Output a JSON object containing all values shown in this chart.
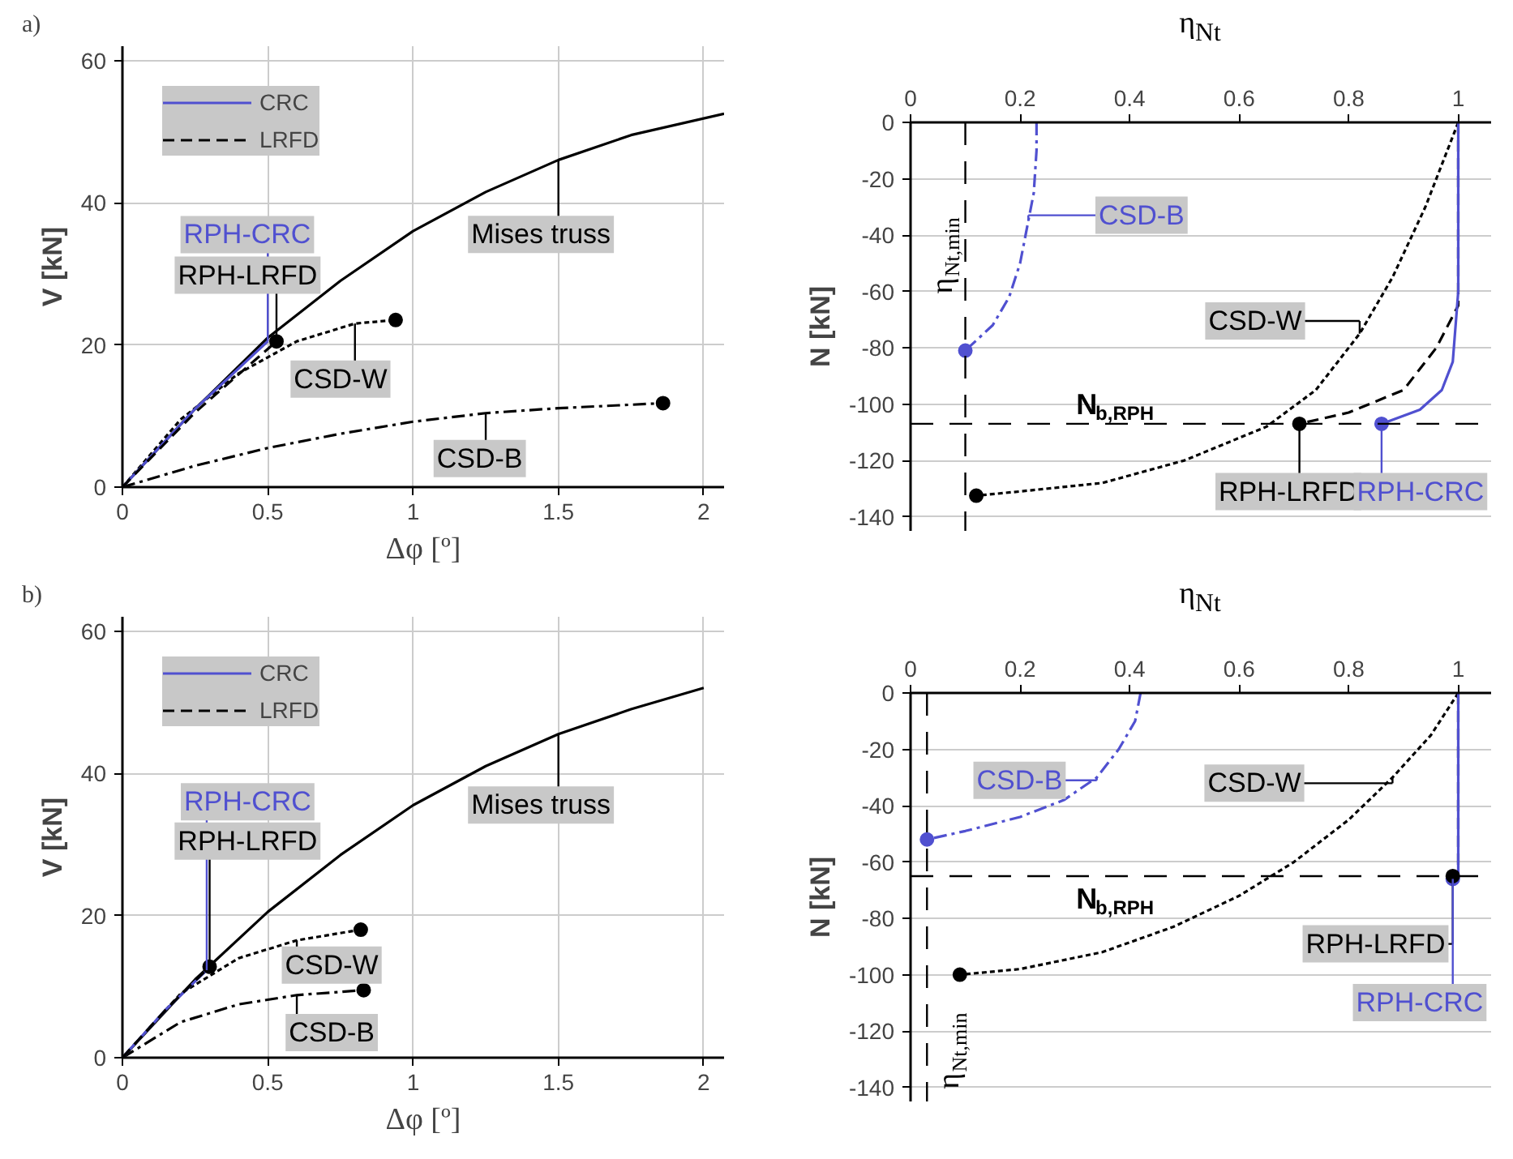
{
  "chart_data": [
    {
      "type": "line",
      "title": "a)",
      "xlabel": "Δφ [º]",
      "ylabel": "V [kN]",
      "xlim": [
        0,
        2.07
      ],
      "ylim": [
        0,
        62
      ],
      "xticks": [
        0,
        0.5,
        1,
        1.5,
        2
      ],
      "yticks": [
        0,
        20,
        40,
        60
      ],
      "grid": true,
      "legend": "top left",
      "series": [
        {
          "color": "#000000",
          "line_style": "solid",
          "x": [
            0,
            0.25,
            0.5,
            0.75,
            1,
            1.25,
            1.5,
            1.75,
            2.07
          ],
          "values": [
            0,
            11,
            21,
            29,
            36,
            41.5,
            46,
            49.5,
            52.5
          ]
        },
        {
          "color": "#000000",
          "line_style": "dotted",
          "x": [
            0,
            0.2,
            0.4,
            0.6,
            0.8,
            0.94
          ],
          "values": [
            0,
            9.5,
            16,
            20.5,
            23,
            23.5
          ]
        },
        {
          "color": "#000000",
          "line_style": "dashdot",
          "x": [
            0,
            0.25,
            0.5,
            0.75,
            1,
            1.25,
            1.5,
            1.86
          ],
          "values": [
            0,
            3,
            5.5,
            7.5,
            9.2,
            10.4,
            11.1,
            11.8
          ]
        },
        {
          "name": "CRC",
          "color": "#5050d0",
          "line_style": "solid",
          "x": [
            0,
            0.25,
            0.5
          ],
          "values": [
            0,
            11,
            20.5
          ]
        },
        {
          "name": "LRFD",
          "color": "#000000",
          "line_style": "dashed",
          "x": [
            0,
            0.25,
            0.53
          ],
          "values": [
            0,
            10.5,
            20.5
          ]
        },
        {
          "type": "scatter",
          "marker": "circle",
          "color": "#000000",
          "x": [
            0.53,
            0.94,
            1.86
          ],
          "values": [
            20.5,
            23.5,
            11.8
          ]
        }
      ],
      "annotations": [
        {
          "text": "RPH-CRC",
          "x": 0.5,
          "y": 20.5
        },
        {
          "text": "RPH-LRFD",
          "x": 0.53,
          "y": 20.5
        },
        {
          "text": "CSD-W",
          "x": 0.8,
          "y": 23
        },
        {
          "text": "CSD-B",
          "x": 1.25,
          "y": 10.4
        },
        {
          "text": "Mises truss",
          "x": 1.5,
          "y": 46
        }
      ]
    },
    {
      "type": "line",
      "xlabel": "η$_{Nt}$",
      "ylabel": "N [kN]",
      "xlim": [
        0,
        1.06
      ],
      "ylim": [
        -145,
        0
      ],
      "xticks": [
        0,
        0.2,
        0.4,
        0.6,
        0.8,
        1
      ],
      "yticks": [
        0,
        -20,
        -40,
        -60,
        -80,
        -100,
        -120,
        -140
      ],
      "grid": "y",
      "series": [
        {
          "color": "#5050d0",
          "line_style": "dashdot",
          "x": [
            0.23,
            0.23,
            0.225,
            0.215,
            0.2,
            0.18,
            0.15,
            0.1
          ],
          "values": [
            0,
            -10,
            -25,
            -35,
            -50,
            -62,
            -72,
            -81
          ]
        },
        {
          "color": "#000000",
          "line_style": "dotted",
          "x": [
            1,
            0.98,
            0.94,
            0.88,
            0.82,
            0.74,
            0.65,
            0.5,
            0.35,
            0.2,
            0.12
          ],
          "values": [
            0,
            -10,
            -30,
            -55,
            -75,
            -95,
            -108,
            -120,
            -128,
            -131,
            -132.5
          ]
        },
        {
          "color": "#000000",
          "line_style": "dashed",
          "x": [
            1,
            1,
            0.96,
            0.9,
            0.8,
            0.71
          ],
          "values": [
            0,
            -65,
            -80,
            -95,
            -103,
            -107
          ]
        },
        {
          "color": "#5050d0",
          "line_style": "solid",
          "x": [
            1,
            1,
            0.99,
            0.97,
            0.93,
            0.86
          ],
          "values": [
            0,
            -60,
            -85,
            -95,
            -102,
            -107
          ]
        },
        {
          "type": "scatter",
          "marker": "circle",
          "color": "#5050d0",
          "x": [
            0.1,
            0.86
          ],
          "values": [
            -81,
            -107
          ]
        },
        {
          "type": "scatter",
          "marker": "circle",
          "color": "#000000",
          "x": [
            0.12,
            0.71
          ],
          "values": [
            -132.5,
            -107
          ]
        }
      ],
      "ref_lines": [
        {
          "axis": "x",
          "value": 0.1,
          "label": "η$_{Nt,min}$",
          "line_style": "dashed"
        },
        {
          "axis": "y",
          "value": -107,
          "label": "N$_{b,RPH}$",
          "line_style": "dashed"
        }
      ],
      "annotations": [
        {
          "text": "CSD-B",
          "x": 0.215,
          "y": -35
        },
        {
          "text": "CSD-W",
          "x": 0.82,
          "y": -75
        },
        {
          "text": "RPH-LRFD",
          "x": 0.71,
          "y": -107
        },
        {
          "text": "RPH-CRC",
          "x": 0.86,
          "y": -107
        }
      ]
    },
    {
      "type": "line",
      "title": "b)",
      "xlabel": "Δφ [º]",
      "ylabel": "V [kN]",
      "xlim": [
        0,
        2.07
      ],
      "ylim": [
        0,
        62
      ],
      "xticks": [
        0,
        0.5,
        1,
        1.5,
        2
      ],
      "yticks": [
        0,
        20,
        40,
        60
      ],
      "grid": true,
      "legend": "top left",
      "series": [
        {
          "color": "#000000",
          "line_style": "solid",
          "x": [
            0,
            0.25,
            0.5,
            0.75,
            1,
            1.25,
            1.5,
            1.75,
            2
          ],
          "values": [
            0,
            11,
            20.5,
            28.5,
            35.5,
            41,
            45.5,
            49,
            52
          ]
        },
        {
          "color": "#000000",
          "line_style": "dotted",
          "x": [
            0,
            0.2,
            0.4,
            0.6,
            0.82
          ],
          "values": [
            0,
            9,
            14,
            16.5,
            18
          ]
        },
        {
          "color": "#000000",
          "line_style": "dashdot",
          "x": [
            0,
            0.2,
            0.4,
            0.6,
            0.83
          ],
          "values": [
            0,
            5,
            7.5,
            8.8,
            9.5
          ]
        },
        {
          "name": "CRC",
          "color": "#5050d0",
          "line_style": "solid",
          "x": [
            0,
            0.15,
            0.29
          ],
          "values": [
            0,
            6.8,
            12.3
          ]
        },
        {
          "name": "LRFD",
          "color": "#000000",
          "line_style": "dashed",
          "x": [
            0,
            0.15,
            0.3
          ],
          "values": [
            0,
            6.8,
            12.8
          ]
        },
        {
          "type": "scatter",
          "marker": "circle",
          "color": "#000000",
          "x": [
            0.3,
            0.82,
            0.83
          ],
          "values": [
            12.8,
            18,
            9.5
          ]
        }
      ],
      "annotations": [
        {
          "text": "RPH-CRC",
          "x": 0.29,
          "y": 12.3
        },
        {
          "text": "RPH-LRFD",
          "x": 0.3,
          "y": 12.8
        },
        {
          "text": "CSD-W",
          "x": 0.6,
          "y": 16.5
        },
        {
          "text": "CSD-B",
          "x": 0.6,
          "y": 8.8
        },
        {
          "text": "Mises truss",
          "x": 1.5,
          "y": 45.5
        }
      ]
    },
    {
      "type": "line",
      "xlabel": "η$_{Nt}$",
      "ylabel": "N [kN]",
      "xlim": [
        0,
        1.06
      ],
      "ylim": [
        -145,
        0
      ],
      "xticks": [
        0,
        0.2,
        0.4,
        0.6,
        0.8,
        1
      ],
      "yticks": [
        0,
        -20,
        -40,
        -60,
        -80,
        -100,
        -120,
        -140
      ],
      "grid": "y",
      "series": [
        {
          "color": "#5050d0",
          "line_style": "dashdot",
          "x": [
            0.42,
            0.41,
            0.38,
            0.34,
            0.28,
            0.2,
            0.1,
            0.03
          ],
          "values": [
            0,
            -10,
            -20,
            -30,
            -38,
            -44,
            -49,
            -52
          ]
        },
        {
          "color": "#000000",
          "line_style": "dotted",
          "x": [
            1,
            0.95,
            0.88,
            0.8,
            0.7,
            0.6,
            0.48,
            0.35,
            0.2,
            0.09
          ],
          "values": [
            0,
            -15,
            -30,
            -45,
            -60,
            -72,
            -83,
            -92,
            -98,
            -100
          ]
        },
        {
          "color": "#000000",
          "line_style": "dashed",
          "x": [
            1,
            1
          ],
          "values": [
            0,
            -65
          ]
        },
        {
          "color": "#5050d0",
          "line_style": "solid",
          "x": [
            1,
            1
          ],
          "values": [
            0,
            -65
          ]
        },
        {
          "type": "scatter",
          "marker": "circle",
          "color": "#5050d0",
          "x": [
            0.03,
            0.99
          ],
          "values": [
            -52,
            -66
          ]
        },
        {
          "type": "scatter",
          "marker": "circle",
          "color": "#000000",
          "x": [
            0.09,
            0.99
          ],
          "values": [
            -100,
            -65
          ]
        }
      ],
      "ref_lines": [
        {
          "axis": "x",
          "value": 0.03,
          "label": "η$_{Nt,min}$",
          "line_style": "dashed"
        },
        {
          "axis": "y",
          "value": -65,
          "label": "N$_{b,RPH}$",
          "line_style": "dashed"
        }
      ],
      "annotations": [
        {
          "text": "CSD-B",
          "x": 0.34,
          "y": -30
        },
        {
          "text": "CSD-W",
          "x": 0.88,
          "y": -30
        },
        {
          "text": "RPH-LRFD",
          "x": 0.99,
          "y": -65
        },
        {
          "text": "RPH-CRC",
          "x": 0.99,
          "y": -66
        }
      ]
    }
  ]
}
